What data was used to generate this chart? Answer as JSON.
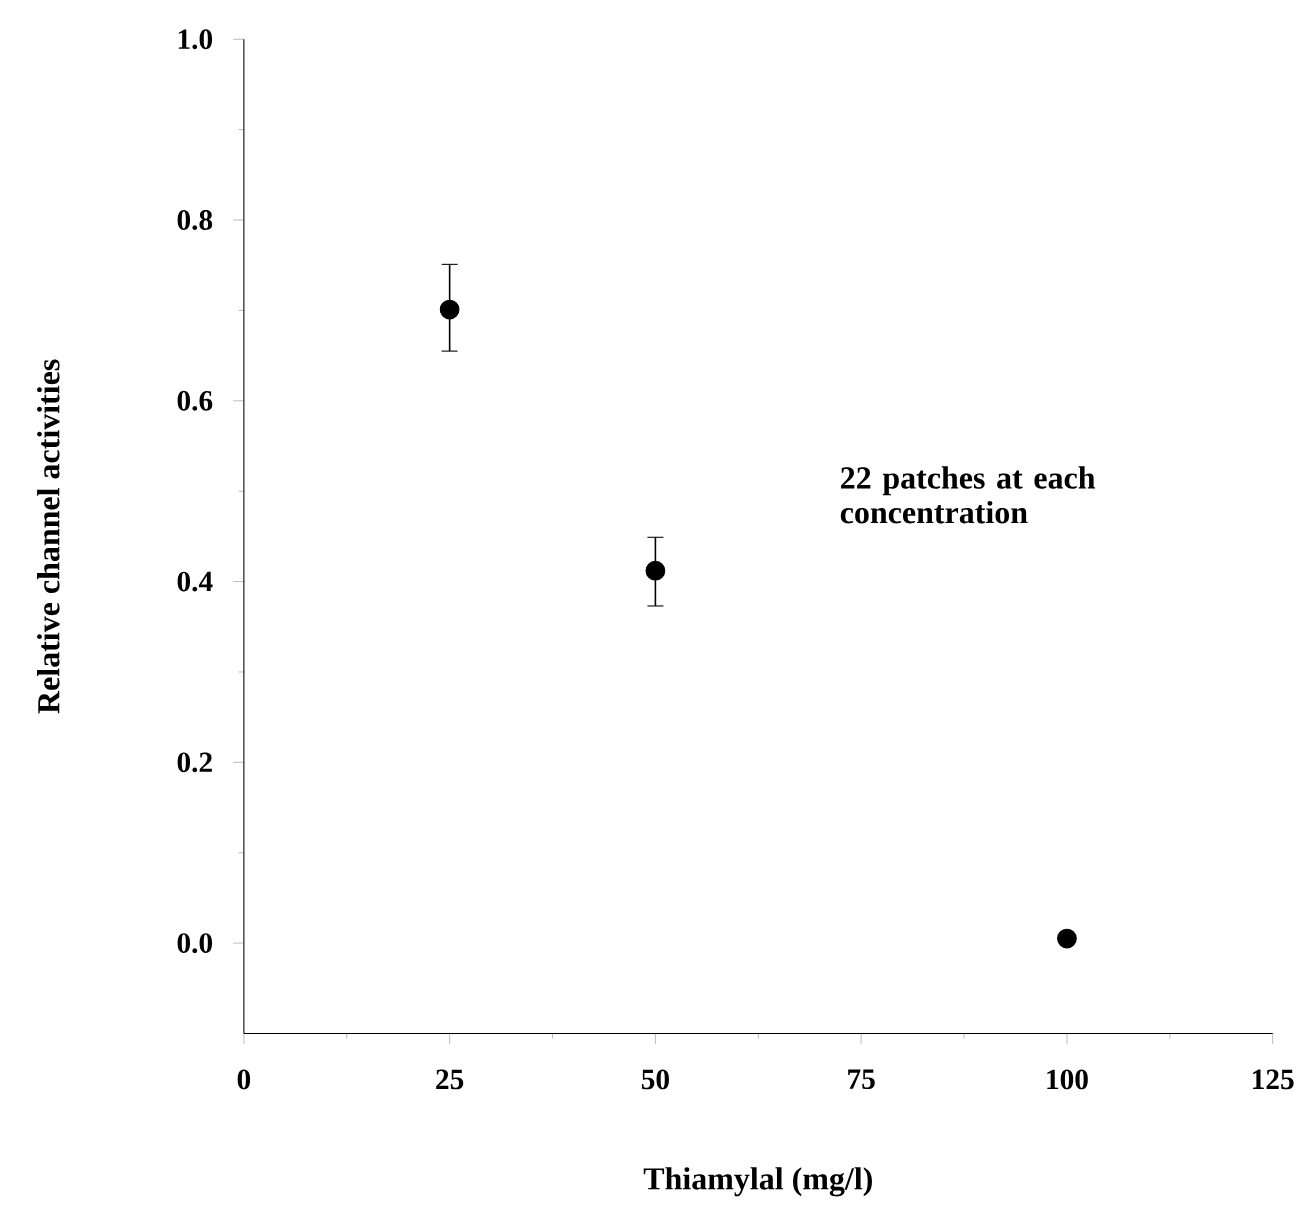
{
  "chart_data": {
    "type": "scatter",
    "xlabel": "Thiamylal (mg/l)",
    "ylabel": "Relative channel activities",
    "x": [
      25,
      50,
      100
    ],
    "values": [
      0.701,
      0.412,
      0.005
    ],
    "errors": [
      [
        0.655,
        0.751
      ],
      [
        0.373,
        0.449
      ],
      null
    ],
    "color": "#000000",
    "marker": "circle",
    "xlim": [
      0,
      125
    ],
    "xticks": [
      0,
      25,
      50,
      75,
      100,
      125
    ],
    "ylim": [
      -0.1,
      1.0
    ],
    "yticks": [
      {
        "value": 0,
        "label": "0.0"
      },
      0.2,
      0.4,
      0.6,
      0.8,
      {
        "value": 1,
        "label": "1.0"
      }
    ],
    "annotations": [
      "22 patches at each concentration"
    ]
  }
}
